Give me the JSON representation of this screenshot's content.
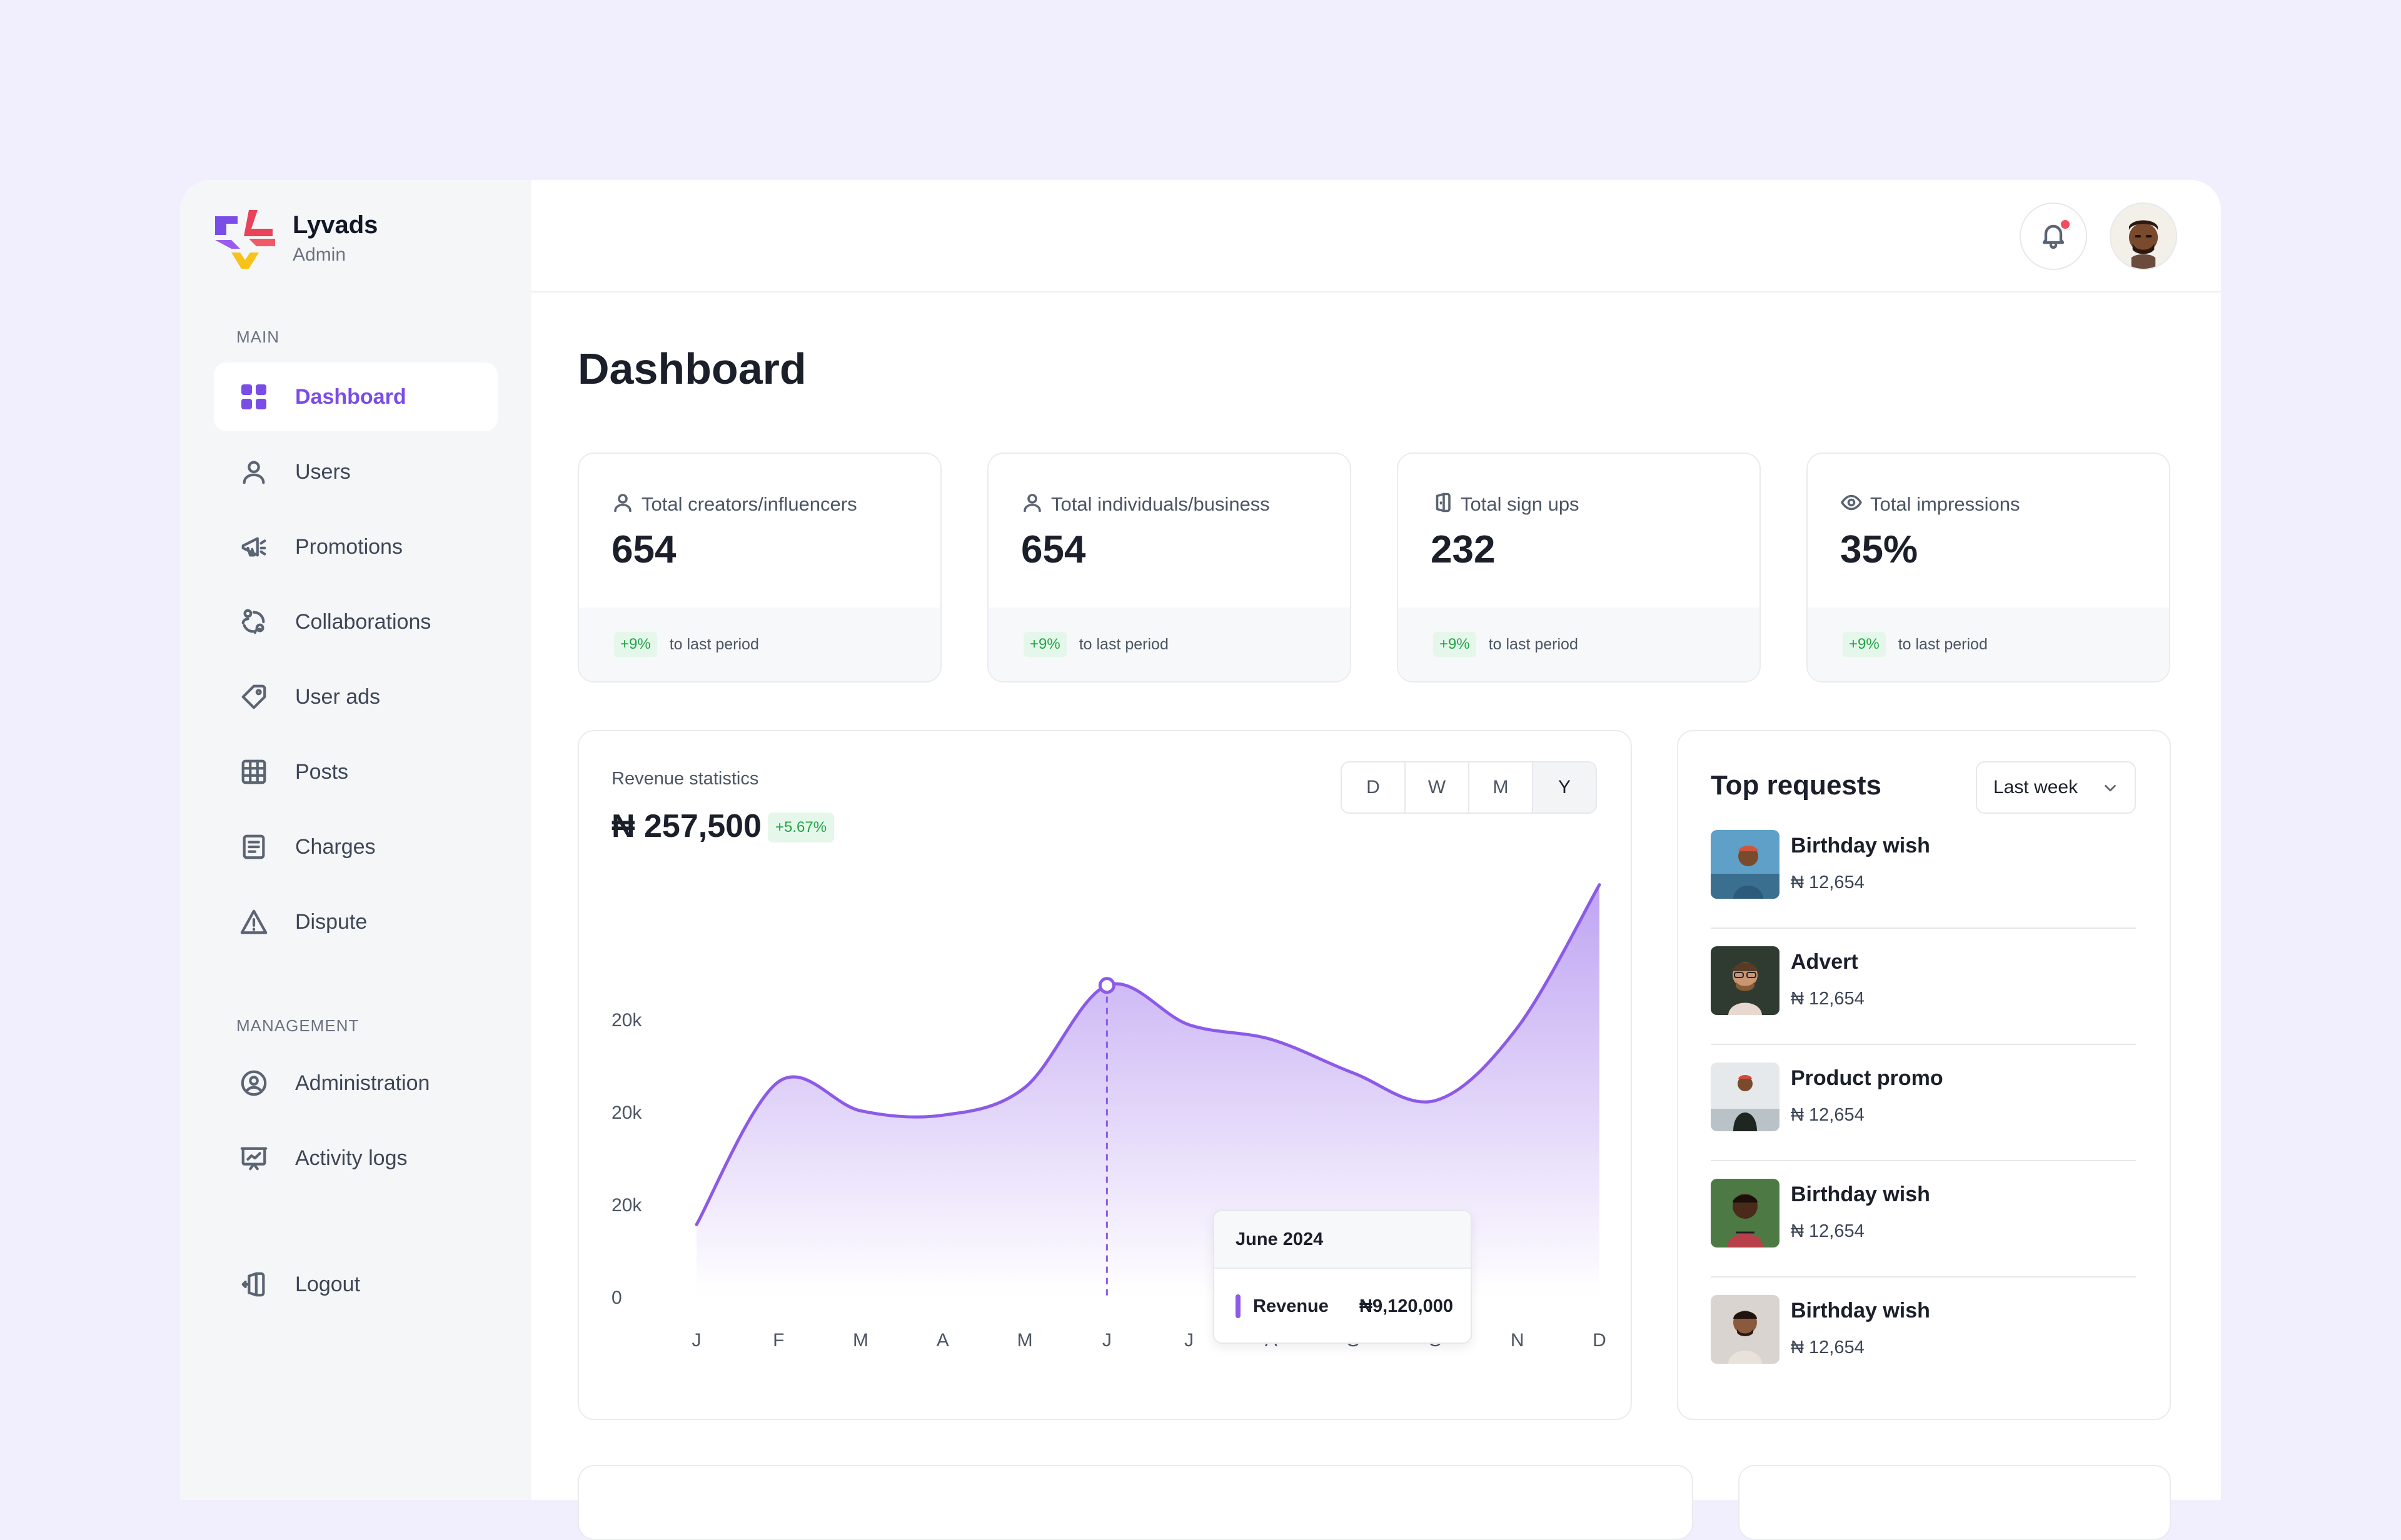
{
  "brand": {
    "name": "Lyvads",
    "subtitle": "Admin"
  },
  "sidebar": {
    "main_label": "MAIN",
    "main_items": [
      {
        "label": "Dashboard",
        "icon": "grid-icon",
        "active": true
      },
      {
        "label": "Users",
        "icon": "user-icon"
      },
      {
        "label": "Promotions",
        "icon": "megaphone-icon"
      },
      {
        "label": "Collaborations",
        "icon": "collaboration-icon"
      },
      {
        "label": "User ads",
        "icon": "tag-icon"
      },
      {
        "label": "Posts",
        "icon": "posts-grid-icon"
      },
      {
        "label": "Charges",
        "icon": "document-icon"
      },
      {
        "label": "Dispute",
        "icon": "warning-icon"
      }
    ],
    "management_label": "MANAGEMENT",
    "management_items": [
      {
        "label": "Administration",
        "icon": "user-circle-icon"
      },
      {
        "label": "Activity logs",
        "icon": "presentation-chart-icon"
      }
    ],
    "logout_label": "Logout"
  },
  "header": {
    "notification_icon": "bell-icon",
    "has_unread": true
  },
  "page": {
    "title": "Dashboard"
  },
  "stats": [
    {
      "label": "Total creators/influencers",
      "value": "654",
      "change": "+9%",
      "period": "to last period",
      "icon": "user-icon"
    },
    {
      "label": "Total individuals/business",
      "value": "654",
      "change": "+9%",
      "period": "to last period",
      "icon": "user-icon"
    },
    {
      "label": "Total sign ups",
      "value": "232",
      "change": "+9%",
      "period": "to last period",
      "icon": "door-icon"
    },
    {
      "label": "Total impressions",
      "value": "35%",
      "change": "+9%",
      "period": "to last period",
      "icon": "eye-icon"
    }
  ],
  "revenue": {
    "label": "Revenue statistics",
    "amount": "₦ 257,500",
    "change": "+5.67%",
    "periods": [
      "D",
      "W",
      "M",
      "Y"
    ],
    "selected_period": "Y",
    "tooltip": {
      "title": "June 2024",
      "series": "Revenue",
      "value": "₦9,120,000"
    },
    "accent": "#8c5ae8"
  },
  "chart_data": {
    "type": "area",
    "categories": [
      "J",
      "F",
      "M",
      "A",
      "M",
      "J",
      "J",
      "A",
      "S",
      "O",
      "N",
      "D"
    ],
    "y_tick_labels": [
      "0",
      "20k",
      "20k",
      "20k"
    ],
    "series": [
      {
        "name": "Revenue",
        "values": [
          5,
          14.8,
          12.8,
          12.5,
          14.4,
          21.4,
          18.7,
          17.7,
          15.4,
          13.5,
          18.5,
          28.3
        ]
      }
    ],
    "ylim": [
      0,
      30
    ],
    "grid": false,
    "highlight_index": 5
  },
  "requests": {
    "title": "Top requests",
    "filter": "Last week",
    "items": [
      {
        "name": "Birthday wish",
        "price": "₦ 12,654"
      },
      {
        "name": "Advert",
        "price": "₦ 12,654"
      },
      {
        "name": "Product promo",
        "price": "₦ 12,654"
      },
      {
        "name": "Birthday wish",
        "price": "₦ 12,654"
      },
      {
        "name": "Birthday wish",
        "price": "₦ 12,654"
      }
    ]
  }
}
